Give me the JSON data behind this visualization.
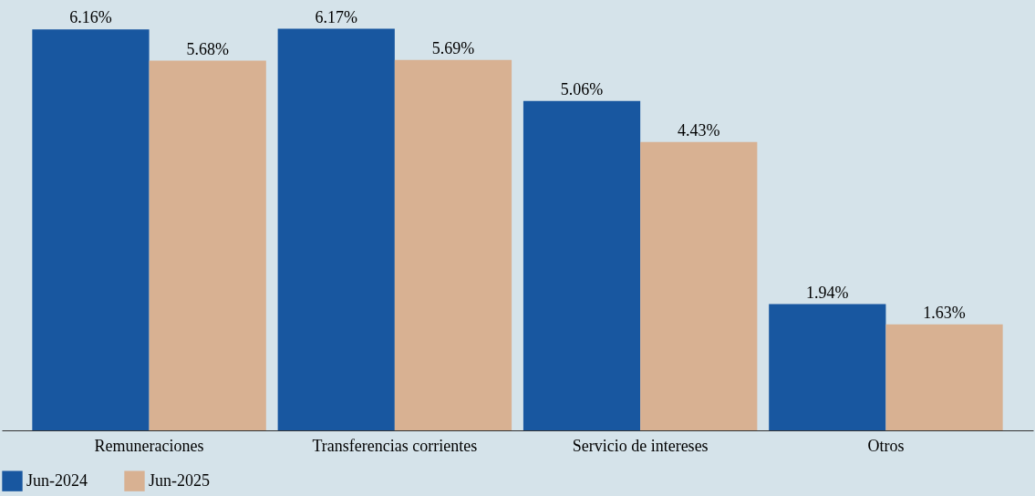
{
  "chart_data": {
    "type": "bar",
    "categories": [
      "Remuneraciones",
      "Transferencias corrientes",
      "Servicio de intereses",
      "Otros"
    ],
    "series": [
      {
        "name": "Jun-2024",
        "color": "#1857a0",
        "values": [
          6.16,
          6.17,
          5.06,
          1.94
        ],
        "value_labels": [
          "6.16%",
          "6.17%",
          "5.06%",
          "1.94%"
        ]
      },
      {
        "name": "Jun-2025",
        "color": "#d8b192",
        "values": [
          5.68,
          5.69,
          4.43,
          1.63
        ],
        "value_labels": [
          "5.68%",
          "5.69%",
          "4.43%",
          "1.63%"
        ]
      }
    ],
    "legend": "bottom",
    "grid": false
  }
}
